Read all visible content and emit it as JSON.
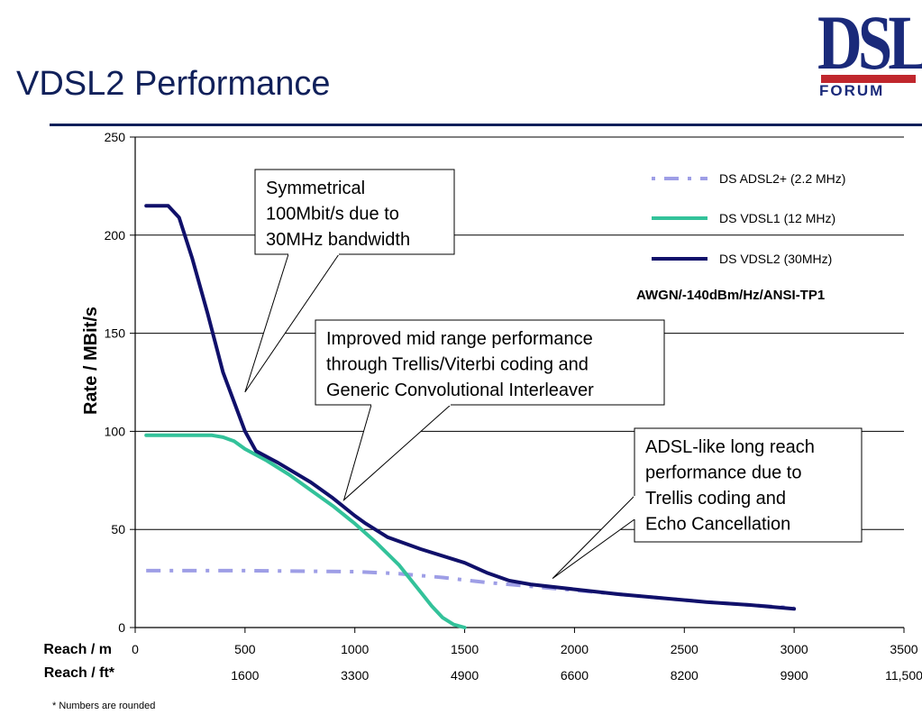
{
  "slide": {
    "title": "VDSL2 Performance",
    "footnote": "* Numbers are rounded"
  },
  "logo": {
    "main": "DSL",
    "sub": "FORUM"
  },
  "chart_data": {
    "type": "line",
    "title": "",
    "ylabel": "Rate / MBit/s",
    "xlabel_m": "Reach / m",
    "xlabel_ft": "Reach / ft*",
    "xlim": [
      0,
      3500
    ],
    "ylim": [
      0,
      250
    ],
    "grid": true,
    "legend_position": "top-right",
    "x_ticks_m": [
      "0",
      "500",
      "1000",
      "1500",
      "2000",
      "2500",
      "3000",
      "3500"
    ],
    "x_ticks_ft": [
      "1600",
      "3300",
      "4900",
      "6600",
      "8200",
      "9900",
      "11,500"
    ],
    "y_ticks": [
      "0",
      "50",
      "100",
      "150",
      "200",
      "250"
    ],
    "legend_note": "AWGN/-140dBm/Hz/ANSI-TP1",
    "series": [
      {
        "name": "DS ADSL2+ (2.2 MHz)",
        "color": "#9e9ee6",
        "style": "dashdot",
        "points": [
          [
            50,
            29
          ],
          [
            500,
            29
          ],
          [
            1000,
            28.5
          ],
          [
            1200,
            27.5
          ],
          [
            1400,
            25.5
          ],
          [
            1600,
            23
          ],
          [
            1800,
            21
          ],
          [
            2000,
            19
          ],
          [
            2200,
            17
          ],
          [
            2400,
            15
          ],
          [
            2600,
            13
          ],
          [
            2800,
            11.5
          ],
          [
            3000,
            10
          ]
        ]
      },
      {
        "name": "DS VDSL1 (12 MHz)",
        "color": "#33c29a",
        "style": "solid",
        "points": [
          [
            50,
            98
          ],
          [
            200,
            98
          ],
          [
            350,
            98
          ],
          [
            400,
            97
          ],
          [
            450,
            95
          ],
          [
            500,
            91
          ],
          [
            600,
            85
          ],
          [
            700,
            78
          ],
          [
            800,
            70
          ],
          [
            900,
            62
          ],
          [
            1000,
            53
          ],
          [
            1100,
            43
          ],
          [
            1200,
            32
          ],
          [
            1300,
            18
          ],
          [
            1350,
            11
          ],
          [
            1400,
            5
          ],
          [
            1450,
            1.5
          ],
          [
            1500,
            0
          ]
        ]
      },
      {
        "name": "DS VDSL2 (30MHz)",
        "color": "#10106a",
        "style": "solid",
        "points": [
          [
            50,
            215
          ],
          [
            150,
            215
          ],
          [
            200,
            209
          ],
          [
            260,
            188
          ],
          [
            330,
            160
          ],
          [
            400,
            130
          ],
          [
            500,
            100
          ],
          [
            550,
            90
          ],
          [
            650,
            84
          ],
          [
            800,
            74
          ],
          [
            900,
            66
          ],
          [
            1000,
            57
          ],
          [
            1050,
            53
          ],
          [
            1150,
            46
          ],
          [
            1300,
            40
          ],
          [
            1500,
            33
          ],
          [
            1600,
            28
          ],
          [
            1700,
            24
          ],
          [
            1800,
            22
          ],
          [
            2000,
            19.5
          ],
          [
            2200,
            17
          ],
          [
            2400,
            15
          ],
          [
            2600,
            13
          ],
          [
            2800,
            11.5
          ],
          [
            3000,
            9.5
          ]
        ]
      }
    ],
    "annotations": [
      {
        "lines": [
          "Symmetrical",
          "100Mbit/s due to",
          "30MHz bandwidth"
        ],
        "target": [
          500,
          120
        ]
      },
      {
        "lines": [
          "Improved mid range performance",
          "through Trellis/Viterbi coding and",
          "Generic Convolutional Interleaver"
        ],
        "target": [
          950,
          65
        ]
      },
      {
        "lines": [
          "ADSL-like long reach",
          "performance due to",
          "Trellis coding and",
          "Echo Cancellation"
        ],
        "target": [
          1900,
          25
        ]
      }
    ]
  }
}
